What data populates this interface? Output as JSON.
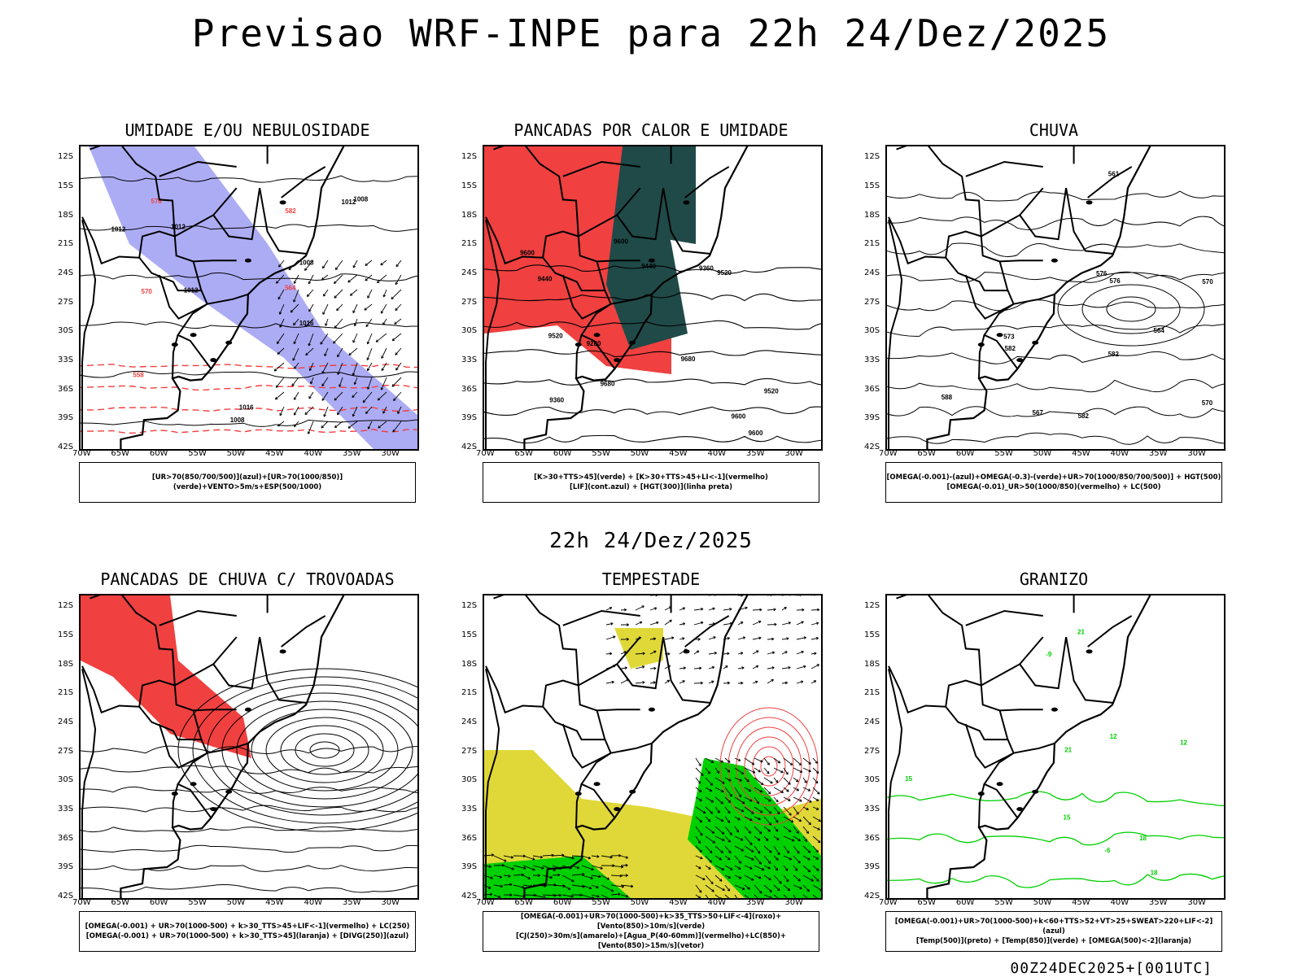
{
  "page": {
    "main_title": "Previsao WRF-INPE  para 22h 24/Dez/2025",
    "mid_title": "22h 24/Dez/2025",
    "footer": "00Z24DEC2025+[001UTC]"
  },
  "axes": {
    "lat_labels": [
      "12S",
      "15S",
      "18S",
      "21S",
      "24S",
      "27S",
      "30S",
      "33S",
      "36S",
      "39S",
      "42S"
    ],
    "lon_labels": [
      "70W",
      "65W",
      "60W",
      "55W",
      "50W",
      "45W",
      "40W",
      "35W",
      "30W"
    ]
  },
  "panels": [
    {
      "title": "UMIDADE E/OU NEBULOSIDADE",
      "legend": [
        "[UR>70(850/700/500)](azul)+[UR>70(1000/850)](verde)+VENTO>5m/s+ESP(500/1000)"
      ]
    },
    {
      "title": "PANCADAS POR CALOR E UMIDADE",
      "legend": [
        "[K>30+TTS>45](verde) + [K>30+TTS>45+LI<-1](vermelho)",
        "[LIF](cont.azul) + [HGT(300)](linha preta)"
      ]
    },
    {
      "title": "CHUVA",
      "legend": [
        "[OMEGA(-0.001)-(azul)+OMEGA(-0.3)-(verde)+UR>70(1000/850/700/500)] + HGT(500)",
        "[OMEGA(-0.01)_UR>50(1000/850)(vermelho) + LC(500)"
      ]
    },
    {
      "title": "PANCADAS DE CHUVA C/ TROVOADAS",
      "legend": [
        "[OMEGA(-0.001) + UR>70(1000-500) + k>30_TTS>45+LIF<-1](vermelho) + LC(250)",
        "[OMEGA(-0.001) + UR>70(1000-500) + k>30_TTS>45](laranja) + [DIVG(250)](azul)"
      ]
    },
    {
      "title": "TEMPESTADE",
      "legend": [
        "[OMEGA(-0.001)+UR>70(1000-500)+k>35_TTS>50+LIF<-4](roxo)+[Vento(850)>10m/s](verde)",
        "[CJ(250)>30m/s](amarelo)+[Agua_P(40-60mm)](vermelho)+LC(850)+[Vento(850)>15m/s](vetor)"
      ]
    },
    {
      "title": "GRANIZO",
      "legend": [
        "[OMEGA(-0.001)+UR>70(1000-500)+k<60+TTS>52+VT>25+SWEAT>220+LIF<-2](azul)",
        "[Temp(500)](preto) + [Temp(850)](verde) + [OMEGA(500)<-2](laranja)"
      ]
    }
  ],
  "contour_labels": {
    "p1": [
      "1012",
      "1012",
      "1008",
      "1016",
      "1012",
      "1008",
      "1016",
      "1012",
      "1008",
      "576",
      "570",
      "564",
      "558",
      "582"
    ],
    "p2": [
      "9600",
      "9520",
      "9680",
      "9600",
      "9520",
      "9440",
      "9360",
      "9280",
      "9520",
      "9440",
      "9360",
      "9600",
      "9680",
      "9600"
    ],
    "p3": [
      "582",
      "588",
      "582",
      "576",
      "570",
      "564",
      "561",
      "582",
      "576",
      "570",
      "567",
      "573"
    ],
    "p6": [
      "12",
      "15",
      "18",
      "21",
      "-6",
      "-9",
      "15",
      "12",
      "18",
      "21"
    ]
  },
  "colors": {
    "blue": "#8080f0",
    "green": "#00d000",
    "red": "#f04040",
    "darkteal": "#1f4a48",
    "yellow": "#e0d838",
    "orange": "#f08020",
    "blue_dark": "#2040ff",
    "black": "#000000"
  }
}
